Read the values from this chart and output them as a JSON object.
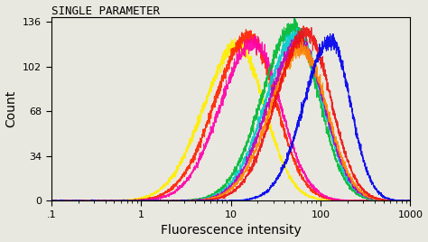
{
  "title": "SINGLE PARAMETER",
  "xlabel": "Fluorescence intensity",
  "ylabel": "Count",
  "xlim": [
    0.1,
    1000
  ],
  "ylim": [
    0,
    140
  ],
  "yticks": [
    0,
    34,
    68,
    102,
    136
  ],
  "background_color": "#e8e8e0",
  "title_fontsize": 9,
  "label_fontsize": 10,
  "tick_fontsize": 8,
  "curves": [
    {
      "color": "#ffee00",
      "peak": 12,
      "sigma_l": 0.38,
      "sigma_r": 0.3,
      "height": 118,
      "seed": 10
    },
    {
      "color": "#ff2200",
      "peak": 16,
      "sigma_l": 0.38,
      "sigma_r": 0.3,
      "height": 125,
      "seed": 11
    },
    {
      "color": "#ff00aa",
      "peak": 18,
      "sigma_l": 0.37,
      "sigma_r": 0.3,
      "height": 120,
      "seed": 12
    },
    {
      "color": "#00bb33",
      "peak": 50,
      "sigma_l": 0.35,
      "sigma_r": 0.28,
      "height": 132,
      "seed": 13
    },
    {
      "color": "#00cccc",
      "peak": 55,
      "sigma_l": 0.35,
      "sigma_r": 0.28,
      "height": 126,
      "seed": 14
    },
    {
      "color": "#bb00bb",
      "peak": 58,
      "sigma_l": 0.35,
      "sigma_r": 0.28,
      "height": 120,
      "seed": 15
    },
    {
      "color": "#ff8800",
      "peak": 62,
      "sigma_l": 0.35,
      "sigma_r": 0.28,
      "height": 115,
      "seed": 16
    },
    {
      "color": "#ee1111",
      "peak": 70,
      "sigma_l": 0.34,
      "sigma_r": 0.27,
      "height": 128,
      "seed": 17
    },
    {
      "color": "#0000ee",
      "peak": 130,
      "sigma_l": 0.3,
      "sigma_r": 0.22,
      "height": 122,
      "seed": 18
    }
  ]
}
